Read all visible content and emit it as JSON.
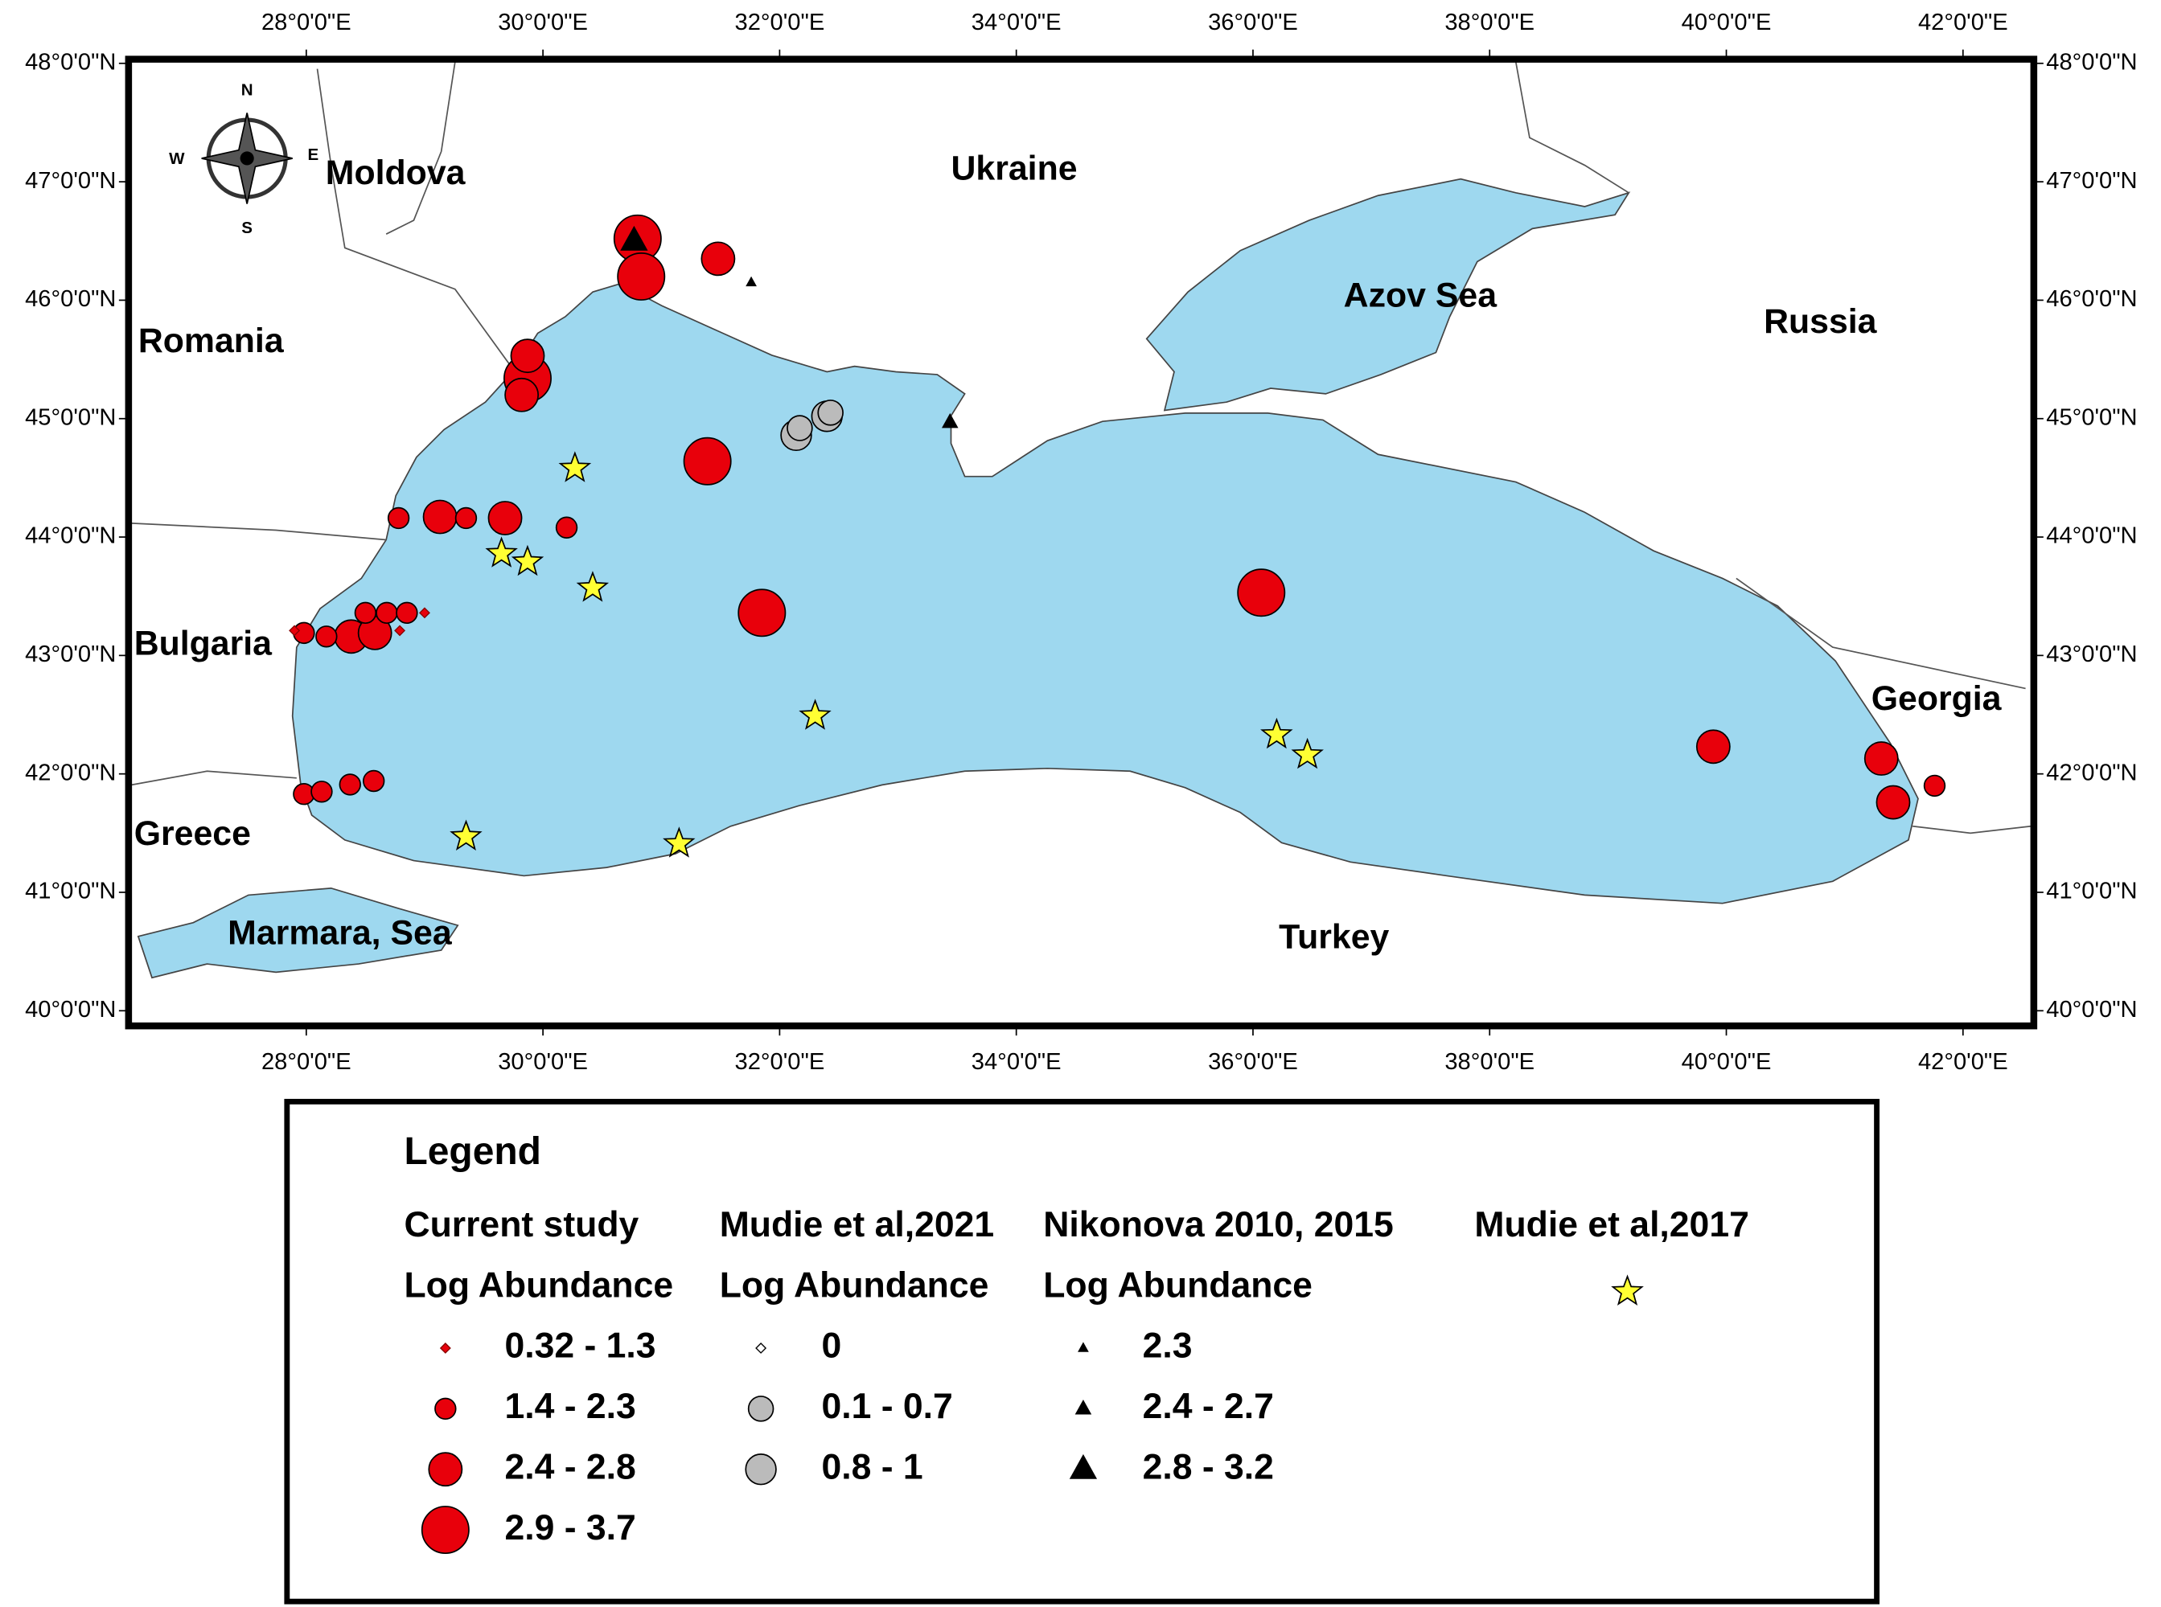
{
  "map": {
    "lon_ticks": [
      {
        "value": 28,
        "label": "28°0'0\"E"
      },
      {
        "value": 30,
        "label": "30°0'0\"E"
      },
      {
        "value": 32,
        "label": "32°0'0\"E"
      },
      {
        "value": 34,
        "label": "34°0'0\"E"
      },
      {
        "value": 36,
        "label": "36°0'0\"E"
      },
      {
        "value": 38,
        "label": "38°0'0\"E"
      },
      {
        "value": 40,
        "label": "40°0'0\"E"
      },
      {
        "value": 42,
        "label": "42°0'0\"E"
      }
    ],
    "lat_ticks": [
      {
        "value": 48,
        "label": "48°0'0\"N"
      },
      {
        "value": 47,
        "label": "47°0'0\"N"
      },
      {
        "value": 46,
        "label": "46°0'0\"N"
      },
      {
        "value": 45,
        "label": "45°0'0\"N"
      },
      {
        "value": 44,
        "label": "44°0'0\"N"
      },
      {
        "value": 43,
        "label": "43°0'0\"N"
      },
      {
        "value": 42,
        "label": "42°0'0\"N"
      },
      {
        "value": 41,
        "label": "41°0'0\"N"
      },
      {
        "value": 40,
        "label": "40°0'0\"N"
      }
    ],
    "places": [
      "Moldova",
      "Ukraine",
      "Romania",
      "Azov Sea",
      "Russia",
      "Bulgaria",
      "Georgia",
      "Greece",
      "Marmara, Sea",
      "Turkey"
    ],
    "compass": [
      "N",
      "S",
      "W",
      "E"
    ]
  },
  "legend": {
    "title": "Legend",
    "groups": [
      {
        "name": "Current study",
        "subtitle": "Log Abundance",
        "classes": [
          {
            "label": "0.32 - 1.3",
            "points": [
              [
                27.9,
                43.21
              ],
              [
                29.0,
                43.36
              ],
              [
                28.79,
                43.21
              ]
            ]
          },
          {
            "label": "1.4 - 2.3",
            "points": [
              [
                28.78,
                44.16
              ],
              [
                29.35,
                44.16
              ],
              [
                30.2,
                44.08
              ],
              [
                27.98,
                41.83
              ],
              [
                28.13,
                41.85
              ],
              [
                28.37,
                41.91
              ],
              [
                28.57,
                41.94
              ],
              [
                41.76,
                41.9
              ],
              [
                27.98,
                43.19
              ],
              [
                28.17,
                43.16
              ],
              [
                28.5,
                43.36
              ],
              [
                28.68,
                43.36
              ],
              [
                28.85,
                43.36
              ]
            ]
          },
          {
            "label": "2.4 - 2.8",
            "points": [
              [
                31.48,
                46.35
              ],
              [
                29.87,
                45.53
              ],
              [
                29.82,
                45.2
              ],
              [
                29.13,
                44.17
              ],
              [
                29.68,
                44.16
              ],
              [
                39.89,
                42.23
              ],
              [
                41.31,
                42.13
              ],
              [
                41.41,
                41.76
              ],
              [
                28.38,
                43.16
              ],
              [
                28.58,
                43.19
              ]
            ]
          },
          {
            "label": "2.9 - 3.7",
            "points": [
              [
                30.8,
                46.52
              ],
              [
                30.83,
                46.2
              ],
              [
                29.87,
                45.34
              ],
              [
                31.39,
                44.64
              ],
              [
                31.85,
                43.36
              ],
              [
                36.07,
                43.53
              ]
            ]
          }
        ]
      },
      {
        "name": "Mudie et al,2021",
        "subtitle": "Log Abundance",
        "classes": [
          {
            "label": "0",
            "points": []
          },
          {
            "label": "0.1 - 0.7",
            "points": [
              [
                32.17,
                44.92
              ],
              [
                32.43,
                45.05
              ]
            ]
          },
          {
            "label": "0.8 - 1",
            "points": [
              [
                32.14,
                44.86
              ],
              [
                32.4,
                45.02
              ]
            ]
          }
        ]
      },
      {
        "name": "Nikonova 2010, 2015",
        "subtitle": "Log Abundance",
        "classes": [
          {
            "label": "2.3",
            "points": [
              [
                31.76,
                46.15
              ]
            ]
          },
          {
            "label": "2.4 - 2.7",
            "points": [
              [
                33.44,
                44.97
              ]
            ]
          },
          {
            "label": "2.8 - 3.2",
            "points": [
              [
                30.77,
                46.5
              ]
            ]
          }
        ]
      },
      {
        "name": "Mudie et al,2017",
        "points": [
          [
            30.27,
            44.58
          ],
          [
            29.65,
            43.86
          ],
          [
            29.87,
            43.79
          ],
          [
            30.42,
            43.57
          ],
          [
            32.3,
            42.49
          ],
          [
            36.2,
            42.33
          ],
          [
            36.46,
            42.16
          ],
          [
            29.35,
            41.47
          ],
          [
            31.15,
            41.41
          ]
        ]
      }
    ]
  }
}
